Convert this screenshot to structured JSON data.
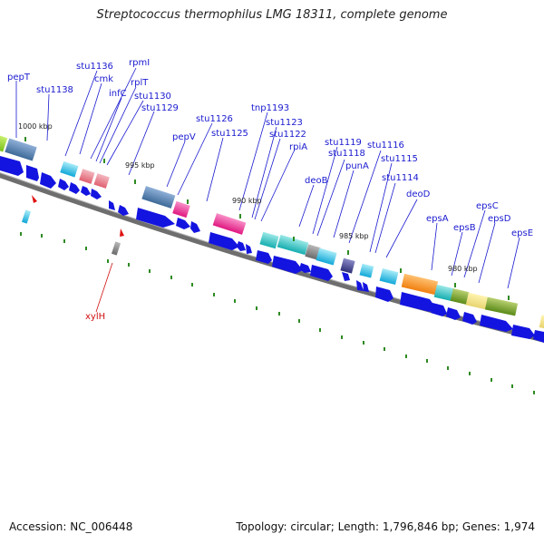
{
  "title": "Streptococcus thermophilus LMG 18311, complete genome",
  "footer": {
    "accession": "Accession: NC_006448",
    "summary": "Topology: circular; Length: 1,796,846 bp; Genes: 1,974"
  },
  "scale_labels": [
    "1000 kbp",
    "995 kbp",
    "990 kbp",
    "985 kbp",
    "980 kbp"
  ],
  "gene_labels": [
    "pepT",
    "stu1138",
    "stu1136",
    "cmk",
    "rpmI",
    "infC",
    "rplT",
    "stu1130",
    "stu1129",
    "pepV",
    "stu1126",
    "stu1125",
    "tnp1193",
    "stu1123",
    "stu1122",
    "rpiA",
    "stu1119",
    "deoB",
    "stu1118",
    "punA",
    "stu1116",
    "stu1115",
    "stu1114",
    "deoD",
    "epsA",
    "epsB",
    "epsC",
    "epsD",
    "epsE"
  ],
  "red_labels": [
    "xylH"
  ],
  "colors": {
    "gene_label": "#1a1ad0",
    "red_label": "#d01010",
    "arrow_blue": "#1414e0",
    "backbone": "#707070",
    "tick_green": "#2e8b22"
  }
}
